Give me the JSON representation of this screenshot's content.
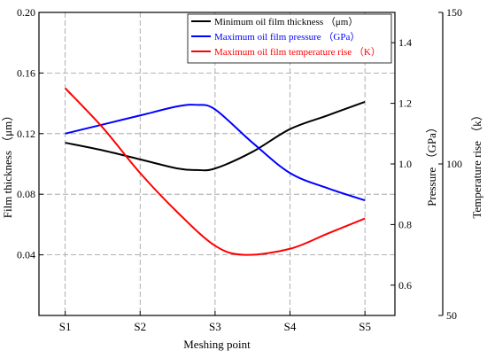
{
  "chart_data": {
    "type": "line",
    "categories": [
      "S1",
      "S2",
      "S3",
      "S4",
      "S5"
    ],
    "xlabel": "Meshing point",
    "grid": true,
    "legend_position": "top-right",
    "axes": {
      "left": {
        "label": "Film thickness （μm）",
        "range": [
          0.0,
          0.2
        ],
        "ticks": [
          0.04,
          0.08,
          0.12,
          0.16,
          0.2
        ],
        "tick_labels": [
          "0.04",
          "0.08",
          "0.12",
          "0.16",
          "0.20"
        ],
        "color": "#000000"
      },
      "right1": {
        "label": "Pressure （GPa）",
        "range": [
          0.5,
          1.5
        ],
        "ticks": [
          0.6,
          0.8,
          1.0,
          1.2,
          1.4
        ],
        "tick_labels": [
          "0.6",
          "0.8",
          "1.0",
          "1.2",
          "1.4"
        ],
        "color": "#000000"
      },
      "right2": {
        "label": "Temperature rise （k）",
        "range": [
          50,
          150
        ],
        "ticks": [
          50,
          100,
          150
        ],
        "tick_labels": [
          "50",
          "100",
          "150"
        ],
        "color": "#000000"
      }
    },
    "series": [
      {
        "name": "Minimum oil film thickness （μm）",
        "axis": "left",
        "color": "#000000",
        "x": [
          1,
          1.5,
          2,
          2.5,
          2.75,
          3,
          3.5,
          4,
          4.5,
          5
        ],
        "values": [
          0.114,
          0.109,
          0.103,
          0.097,
          0.096,
          0.097,
          0.108,
          0.123,
          0.132,
          0.141
        ]
      },
      {
        "name": "Maximum oil film pressure （GPa）",
        "axis": "right1",
        "color": "#0000ff",
        "x": [
          1,
          1.5,
          2,
          2.5,
          2.75,
          3,
          3.5,
          4,
          4.5,
          5
        ],
        "values": [
          1.1,
          1.13,
          1.16,
          1.19,
          1.195,
          1.18,
          1.07,
          0.97,
          0.92,
          0.88
        ]
      },
      {
        "name": "Maximum oil film temperature rise （K）",
        "axis": "right2",
        "color": "#ff0000",
        "x": [
          1,
          1.5,
          2,
          2.5,
          3,
          3.4,
          4,
          4.5,
          5
        ],
        "values": [
          125,
          112,
          97,
          84,
          73,
          70,
          72,
          77,
          82
        ]
      }
    ]
  }
}
